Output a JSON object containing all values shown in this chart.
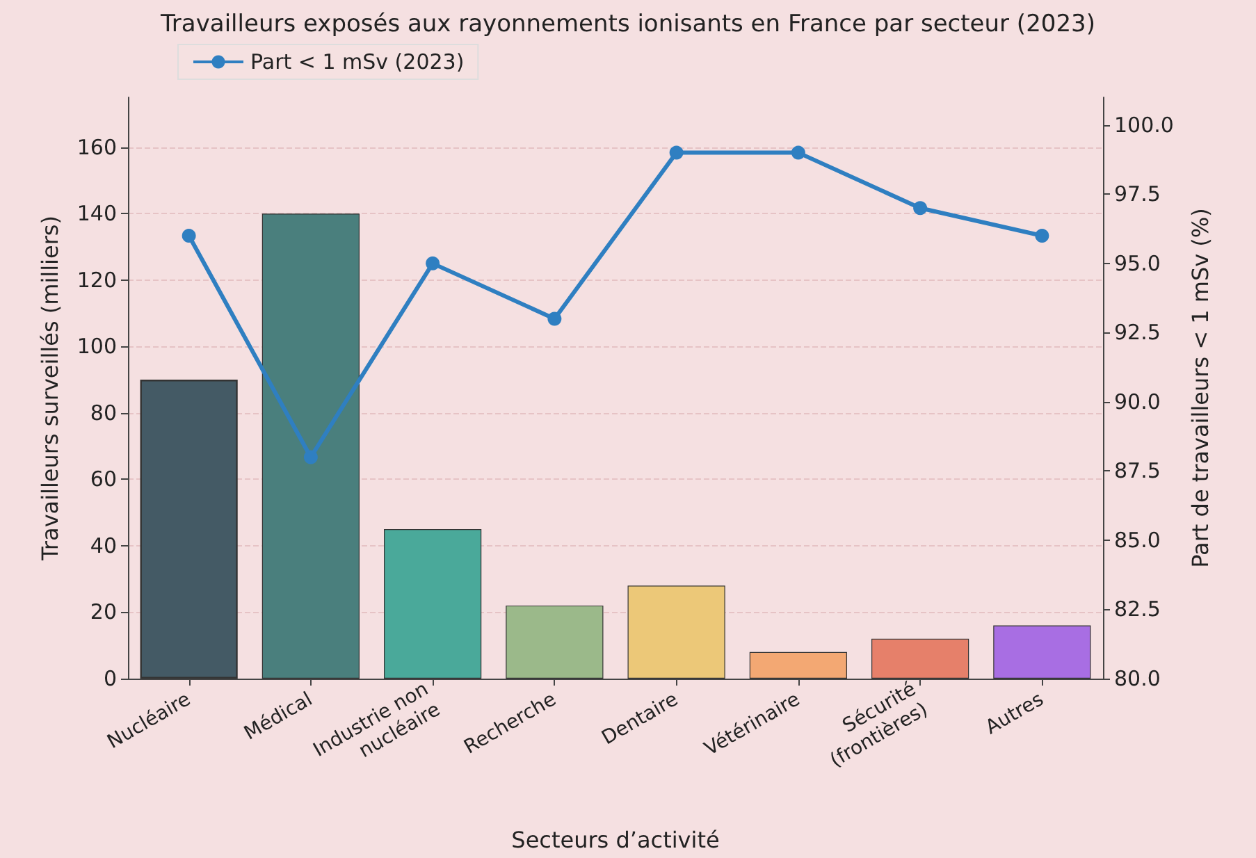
{
  "chart_data": {
    "type": "bar",
    "title": "Travailleurs exposés aux rayonnements ionisants en France par secteur (2023)",
    "xlabel": "Secteurs d’activité",
    "ylabel": "Travailleurs surveillés (milliers)",
    "y2label": "Part de travailleurs < 1 mSv (%)",
    "categories": [
      "Nucléaire",
      "Médical",
      "Industrie non\nnucléaire",
      "Recherche",
      "Dentaire",
      "Vétérinaire",
      "Sécurité\n(frontières)",
      "Autres"
    ],
    "series": [
      {
        "colors": [
          "#445a65",
          "#4a7f7d",
          "#4aa99a",
          "#9bb98a",
          "#ecc878",
          "#f3a873",
          "#e6806a",
          "#a86ee3"
        ],
        "values": [
          90,
          140,
          45,
          22,
          28,
          8,
          12,
          16
        ]
      },
      {
        "type": "line",
        "name": "Part < 1 mSv (2023)",
        "color": "#2f7fc1",
        "axis": "y2",
        "values": [
          96,
          88,
          95,
          93,
          99,
          99,
          97,
          96
        ]
      }
    ],
    "ylim": [
      0,
      175
    ],
    "yticks": [
      0,
      20,
      40,
      60,
      80,
      100,
      120,
      140,
      160
    ],
    "y2lim": [
      80,
      101
    ],
    "y2ticks": [
      {
        "value": 80,
        "label": "80.0"
      },
      {
        "value": 82.5,
        "label": "82.5"
      },
      {
        "value": 85,
        "label": "85.0"
      },
      {
        "value": 87.5,
        "label": "87.5"
      },
      {
        "value": 90,
        "label": "90.0"
      },
      {
        "value": 92.5,
        "label": "92.5"
      },
      {
        "value": 95,
        "label": "95.0"
      },
      {
        "value": 97.5,
        "label": "97.5"
      },
      {
        "value": 100,
        "label": "100.0"
      }
    ],
    "grid": "y",
    "legend": "top left",
    "marker": "circle"
  }
}
